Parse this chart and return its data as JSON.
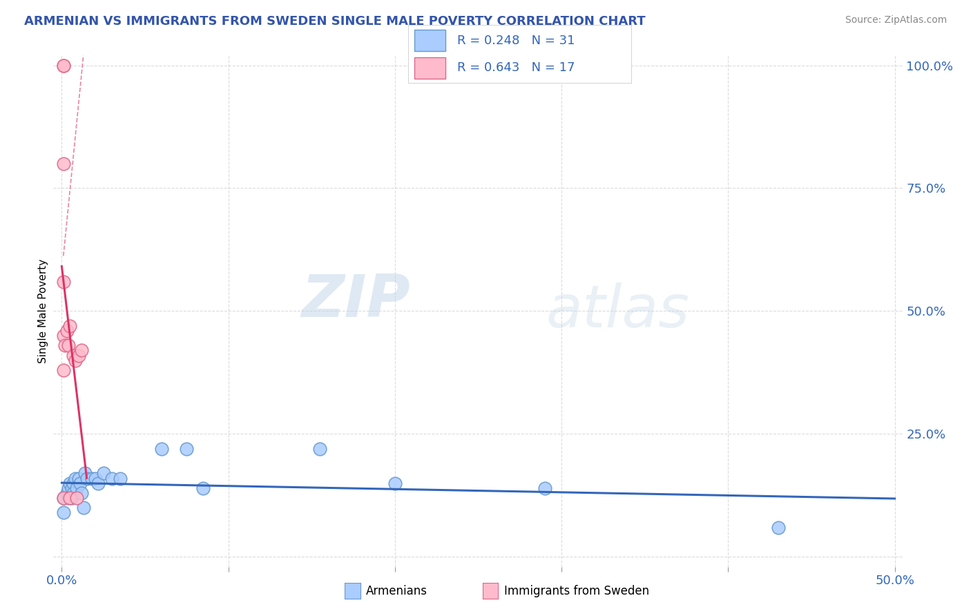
{
  "title": "ARMENIAN VS IMMIGRANTS FROM SWEDEN SINGLE MALE POVERTY CORRELATION CHART",
  "source": "Source: ZipAtlas.com",
  "ylabel": "Single Male Poverty",
  "xlim": [
    -0.005,
    0.505
  ],
  "ylim": [
    -0.02,
    1.02
  ],
  "title_color": "#3355aa",
  "title_fontsize": 13,
  "background_color": "#ffffff",
  "watermark_zip": "ZIP",
  "watermark_atlas": "atlas",
  "legend_r1": "R = 0.248",
  "legend_n1": "N = 31",
  "legend_r2": "R = 0.643",
  "legend_n2": "N = 17",
  "armenians_x": [
    0.001,
    0.001,
    0.003,
    0.004,
    0.004,
    0.005,
    0.006,
    0.006,
    0.007,
    0.007,
    0.008,
    0.009,
    0.01,
    0.011,
    0.012,
    0.013,
    0.014,
    0.015,
    0.018,
    0.02,
    0.022,
    0.025,
    0.03,
    0.035,
    0.06,
    0.075,
    0.085,
    0.155,
    0.2,
    0.29,
    0.43
  ],
  "armenians_y": [
    0.12,
    0.09,
    0.13,
    0.14,
    0.12,
    0.15,
    0.14,
    0.12,
    0.15,
    0.13,
    0.16,
    0.14,
    0.16,
    0.15,
    0.13,
    0.1,
    0.17,
    0.16,
    0.16,
    0.16,
    0.15,
    0.17,
    0.16,
    0.16,
    0.22,
    0.22,
    0.14,
    0.22,
    0.15,
    0.14,
    0.06
  ],
  "sweden_x": [
    0.001,
    0.001,
    0.001,
    0.001,
    0.001,
    0.001,
    0.001,
    0.002,
    0.003,
    0.004,
    0.005,
    0.005,
    0.007,
    0.008,
    0.009,
    0.01,
    0.012
  ],
  "sweden_y": [
    1.0,
    1.0,
    0.8,
    0.56,
    0.45,
    0.38,
    0.12,
    0.43,
    0.46,
    0.43,
    0.47,
    0.12,
    0.41,
    0.4,
    0.12,
    0.41,
    0.42
  ],
  "armenians_color": "#aaccff",
  "armenians_edge": "#6699cc",
  "sweden_color": "#ffbbcc",
  "sweden_edge": "#dd6688",
  "line_armenians_color": "#3366bb",
  "line_sweden_color": "#dd3366",
  "legend_color": "#3366bb",
  "legend_box_armenians": "#aaccff",
  "legend_box_sweden": "#ffbbcc",
  "tick_color": "#3366bb",
  "grid_color": "#cccccc"
}
